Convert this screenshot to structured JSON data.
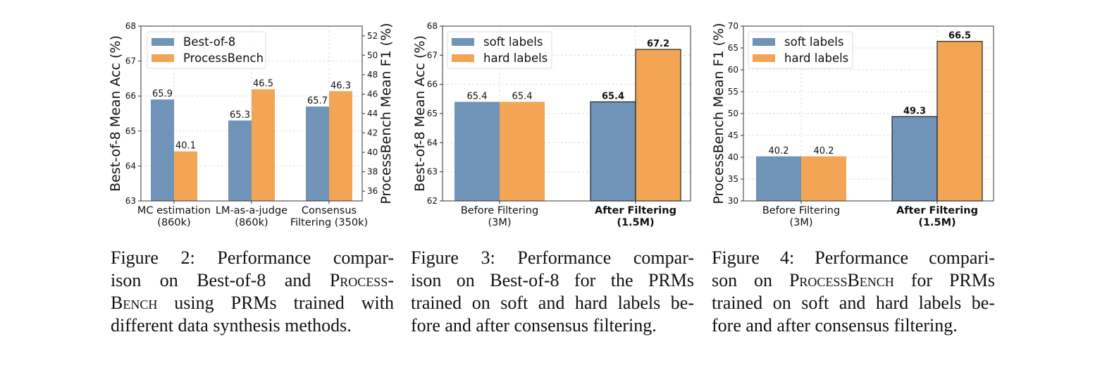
{
  "colors": {
    "blue": "#7093b8",
    "orange": "#f2a555",
    "grid": "#dddddd",
    "axis": "#333333"
  },
  "chart_data": [
    {
      "type": "bar",
      "categories": [
        [
          "MC estimation",
          "(860k)"
        ],
        [
          "LM-as-a-judge",
          "(860k)"
        ],
        [
          "Consensus",
          "Filtering (350k)"
        ]
      ],
      "ylabel": "Best-of-8 Mean Acc (%)",
      "ylabel_right": "ProcessBench Mean F1 (%)",
      "ylim": [
        63,
        68
      ],
      "yticks": [
        63,
        64,
        65,
        66,
        67,
        68
      ],
      "ylim_right": [
        35,
        53
      ],
      "yticks_right": [
        36,
        38,
        40,
        42,
        44,
        46,
        48,
        50,
        52
      ],
      "grid": true,
      "legend_position": "top-left",
      "series": [
        {
          "name": "Best-of-8",
          "axis": "left",
          "color": "#7093b8",
          "values": [
            65.9,
            65.3,
            65.7
          ],
          "labels": [
            "65.9",
            "65.3",
            "65.7"
          ]
        },
        {
          "name": "ProcessBench",
          "axis": "right",
          "color": "#f2a555",
          "values": [
            40.1,
            46.5,
            46.3
          ],
          "labels": [
            "40.1",
            "46.5",
            "46.3"
          ]
        }
      ]
    },
    {
      "type": "bar",
      "categories": [
        [
          "Before Filtering",
          "(3M)"
        ],
        [
          "After Filtering",
          "(1.5M)"
        ]
      ],
      "bold_categories": [
        false,
        true
      ],
      "ylabel": "Best-of-8 Mean Acc (%)",
      "ylim": [
        62,
        68
      ],
      "yticks": [
        62,
        63,
        64,
        65,
        66,
        67,
        68
      ],
      "grid": true,
      "legend_position": "top-left",
      "series": [
        {
          "name": "soft labels",
          "color": "#7093b8",
          "values": [
            65.4,
            65.4
          ],
          "labels": [
            "65.4",
            "65.4"
          ]
        },
        {
          "name": "hard labels",
          "color": "#f2a555",
          "values": [
            65.4,
            67.2
          ],
          "labels": [
            "65.4",
            "67.2"
          ]
        }
      ]
    },
    {
      "type": "bar",
      "categories": [
        [
          "Before Filtering",
          "(3M)"
        ],
        [
          "After Filtering",
          "(1.5M)"
        ]
      ],
      "bold_categories": [
        false,
        true
      ],
      "ylabel": "ProcessBench Mean F1 (%)",
      "ylim": [
        30,
        70
      ],
      "yticks": [
        30,
        35,
        40,
        45,
        50,
        55,
        60,
        65,
        70
      ],
      "grid": true,
      "legend_position": "top-left",
      "series": [
        {
          "name": "soft labels",
          "color": "#7093b8",
          "values": [
            40.2,
            49.3
          ],
          "labels": [
            "40.2",
            "49.3"
          ]
        },
        {
          "name": "hard labels",
          "color": "#f2a555",
          "values": [
            40.2,
            66.5
          ],
          "labels": [
            "40.2",
            "66.5"
          ]
        }
      ]
    }
  ],
  "captions": [
    {
      "lines": [
        [
          {
            "t": "Figure 2:  Performance compar-"
          }
        ],
        [
          {
            "t": "ison on Best-of-8 and "
          },
          {
            "t": "Process-",
            "sc": true
          }
        ],
        [
          {
            "t": "Bench",
            "sc": true
          },
          {
            "t": " using PRMs trained with"
          }
        ],
        [
          {
            "t": "different data synthesis methods."
          }
        ]
      ]
    },
    {
      "lines": [
        [
          {
            "t": "Figure 3:  Performance compar-"
          }
        ],
        [
          {
            "t": "ison on Best-of-8 for the PRMs"
          }
        ],
        [
          {
            "t": "trained on soft and hard labels be-"
          }
        ],
        [
          {
            "t": "fore and after consensus filtering."
          }
        ]
      ]
    },
    {
      "lines": [
        [
          {
            "t": "Figure 4: Performance compari-"
          }
        ],
        [
          {
            "t": "son on "
          },
          {
            "t": "ProcessBench",
            "sc": true
          },
          {
            "t": " for PRMs"
          }
        ],
        [
          {
            "t": "trained on soft and hard labels be-"
          }
        ],
        [
          {
            "t": "fore and after consensus filtering."
          }
        ]
      ]
    }
  ]
}
